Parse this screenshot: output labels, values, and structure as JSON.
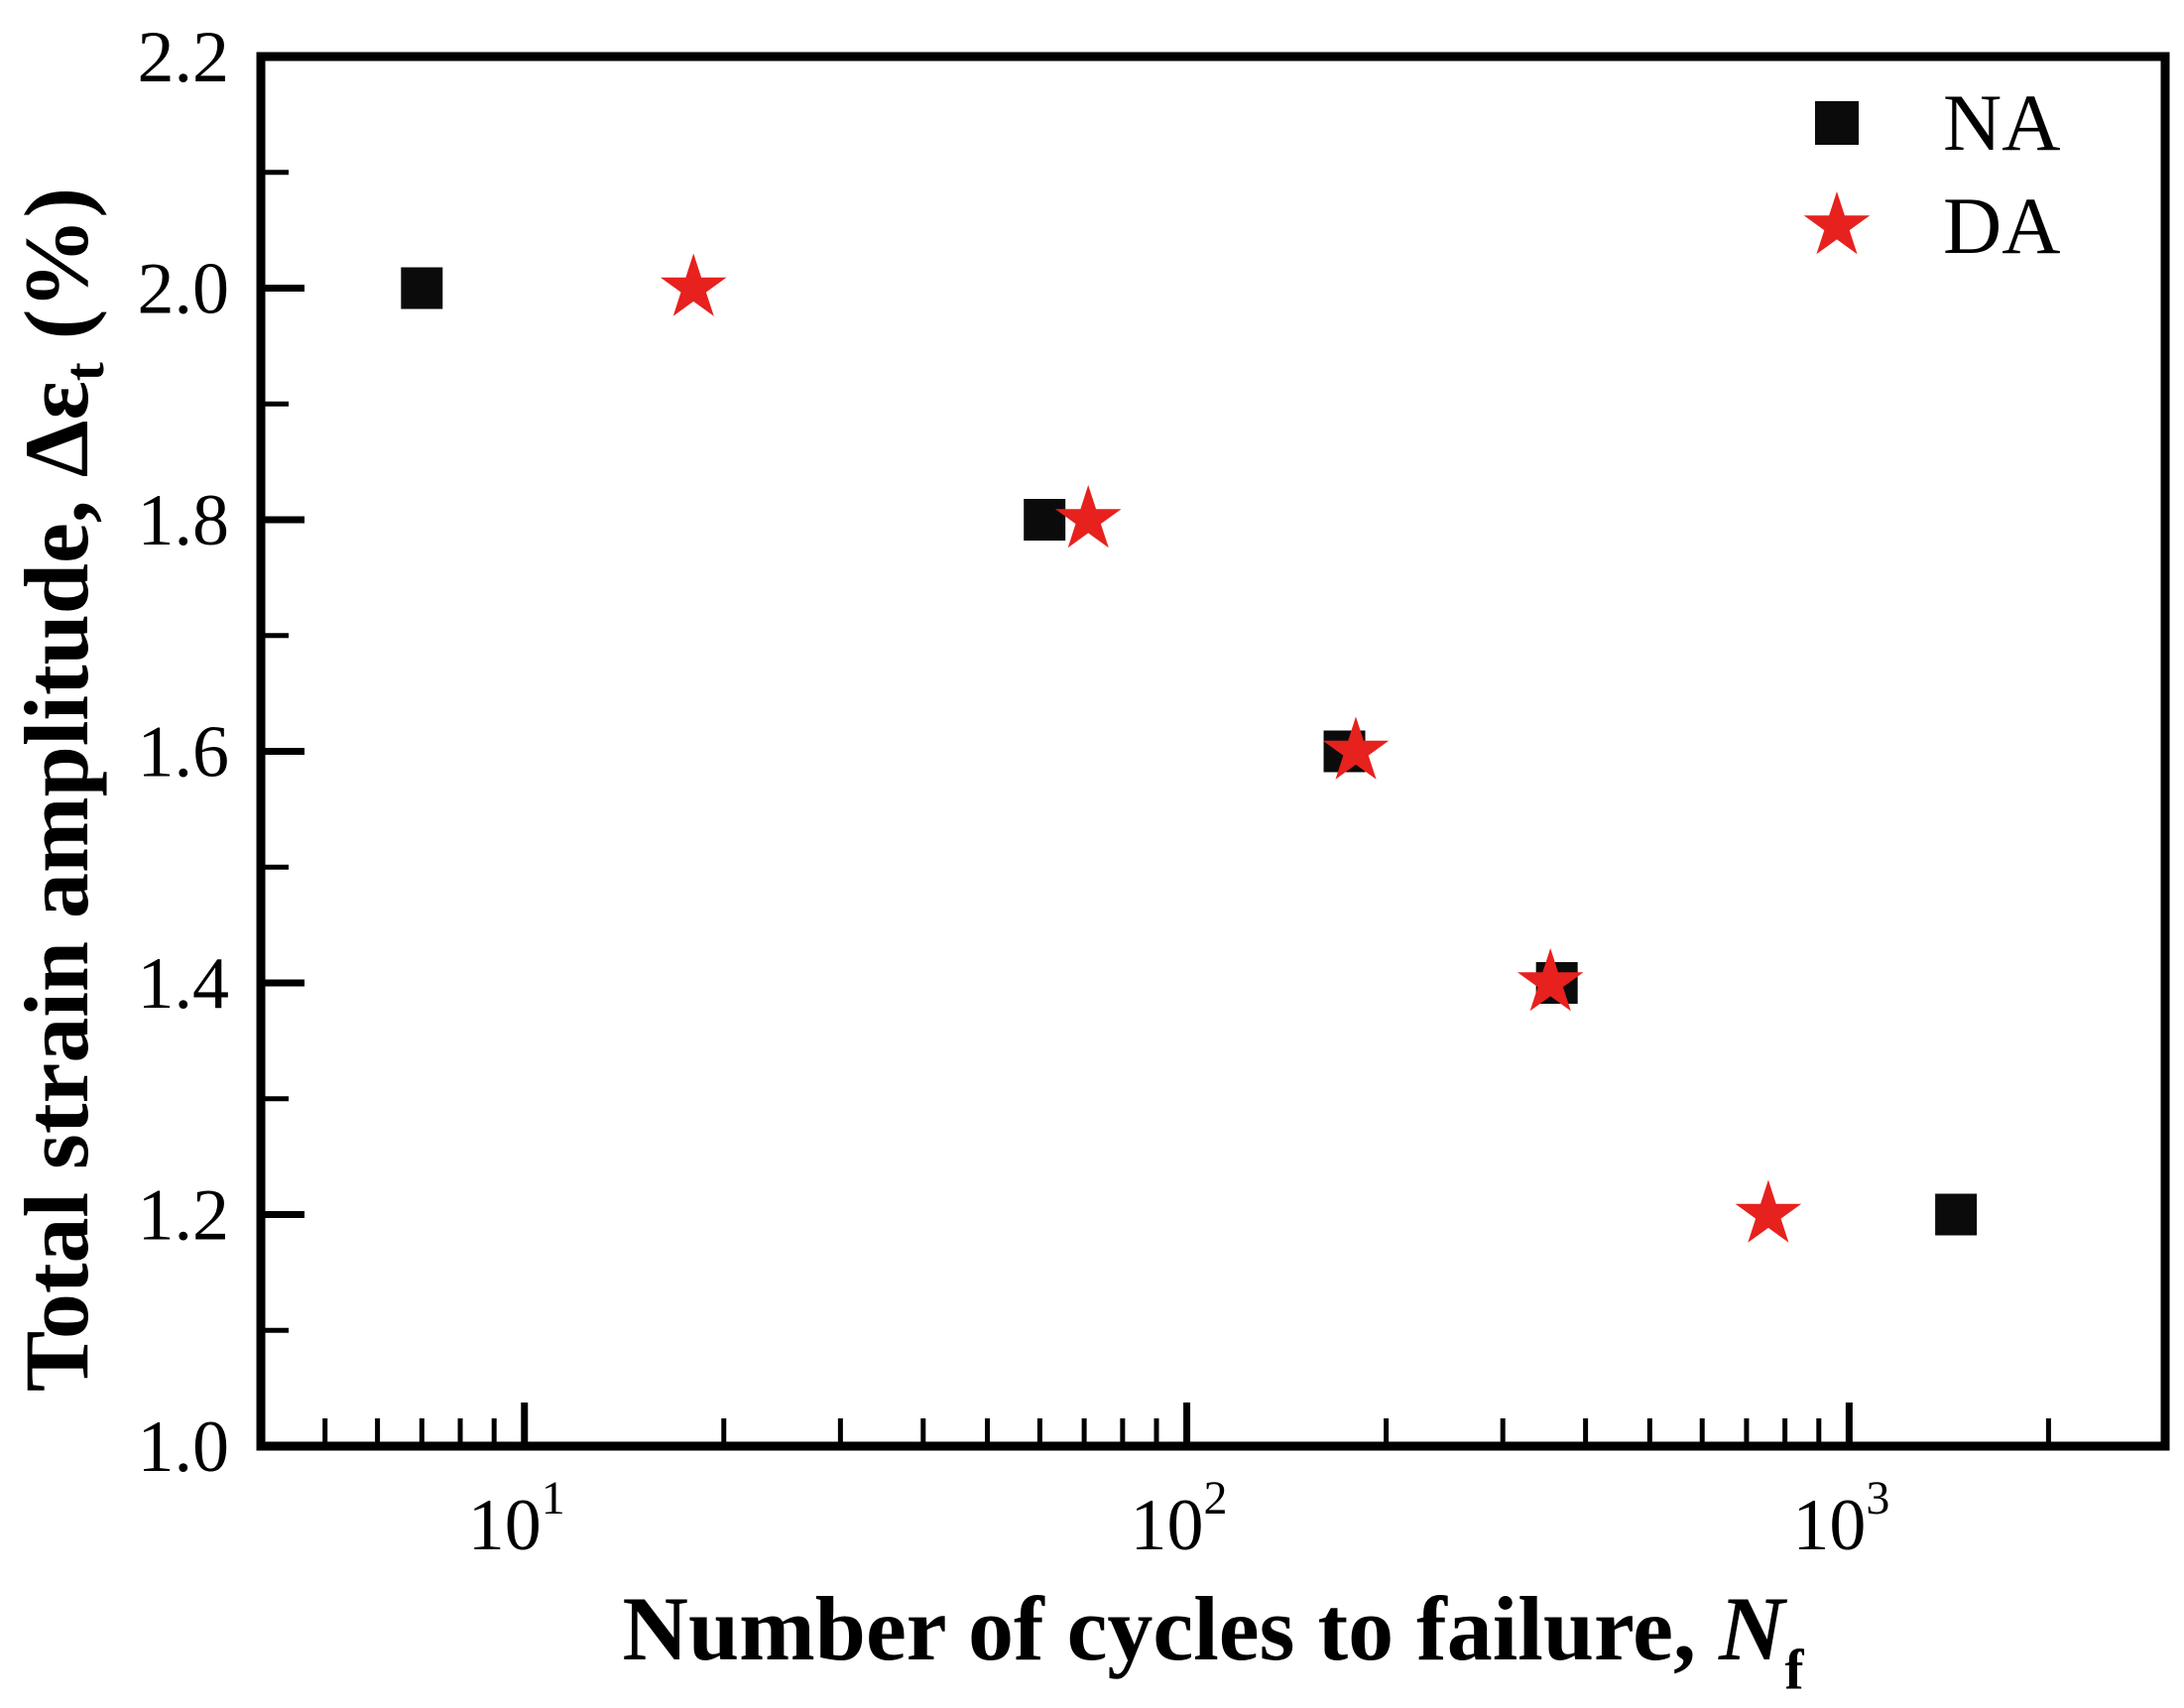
{
  "chart_data": {
    "type": "scatter",
    "title": "",
    "xlabel": "Number of cycles to failure, Nf",
    "ylabel": "Total strain amplitude, Δεt (%)",
    "xlabel_parts": {
      "main": "Number of cycles to failure, ",
      "var": "N",
      "sub": "f"
    },
    "ylabel_parts": {
      "main": "Total strain amplitude, Δε",
      "sub": "t",
      "suffix": " (%)"
    },
    "x_scale": "log",
    "y_scale": "linear",
    "xlim": [
      4,
      3000
    ],
    "ylim": [
      1.0,
      2.2
    ],
    "grid": false,
    "legend_position": "top-right-inside",
    "x_major_ticks": [
      {
        "value": 10,
        "base": "10",
        "exp": "1"
      },
      {
        "value": 100,
        "base": "10",
        "exp": "2"
      },
      {
        "value": 1000,
        "base": "10",
        "exp": "3"
      }
    ],
    "x_minor_ticks": [
      5,
      6,
      7,
      8,
      9,
      20,
      30,
      40,
      50,
      60,
      70,
      80,
      90,
      200,
      300,
      400,
      500,
      600,
      700,
      800,
      900,
      2000
    ],
    "y_major_ticks": [
      {
        "value": 1.0,
        "label": "1.0"
      },
      {
        "value": 1.2,
        "label": "1.2"
      },
      {
        "value": 1.4,
        "label": "1.4"
      },
      {
        "value": 1.6,
        "label": "1.6"
      },
      {
        "value": 1.8,
        "label": "1.8"
      },
      {
        "value": 2.0,
        "label": "2.0"
      },
      {
        "value": 2.2,
        "label": "2.2"
      }
    ],
    "y_minor_ticks": [
      1.1,
      1.3,
      1.5,
      1.7,
      1.9,
      2.1
    ],
    "series": [
      {
        "name": "NA",
        "marker": "square",
        "color": "#0b0b0b",
        "points": [
          [
            7,
            2.0
          ],
          [
            61,
            1.8
          ],
          [
            173,
            1.6
          ],
          [
            362,
            1.4
          ],
          [
            1450,
            1.2
          ]
        ]
      },
      {
        "name": "DA",
        "marker": "star",
        "color": "#e7211d",
        "points": [
          [
            18,
            2.0
          ],
          [
            71,
            1.8
          ],
          [
            180,
            1.6
          ],
          [
            354,
            1.4
          ],
          [
            755,
            1.2
          ]
        ]
      }
    ]
  },
  "legend": {
    "entries": [
      {
        "label": "NA",
        "marker": "square",
        "color": "#0b0b0b"
      },
      {
        "label": "DA",
        "marker": "star",
        "color": "#e7211d"
      }
    ]
  }
}
